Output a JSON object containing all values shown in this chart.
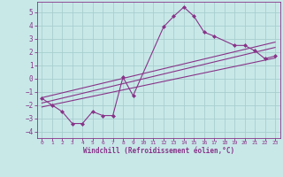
{
  "xlabel": "Windchill (Refroidissement éolien,°C)",
  "background_color": "#c8e8e8",
  "grid_color": "#a8cece",
  "line_color": "#883388",
  "xlim": [
    -0.5,
    23.5
  ],
  "ylim": [
    -4.5,
    5.8
  ],
  "xticks": [
    0,
    1,
    2,
    3,
    4,
    5,
    6,
    7,
    8,
    9,
    10,
    11,
    12,
    13,
    14,
    15,
    16,
    17,
    18,
    19,
    20,
    21,
    22,
    23
  ],
  "yticks": [
    -4,
    -3,
    -2,
    -1,
    0,
    1,
    2,
    3,
    4,
    5
  ],
  "scatter_x": [
    0,
    1,
    2,
    3,
    4,
    5,
    6,
    7,
    8,
    9,
    12,
    13,
    14,
    15,
    16,
    17,
    19,
    20,
    21,
    22,
    23
  ],
  "scatter_y": [
    -1.5,
    -2.0,
    -2.5,
    -3.4,
    -3.4,
    -2.5,
    -2.8,
    -2.8,
    0.1,
    -1.3,
    3.9,
    4.7,
    5.4,
    4.7,
    3.5,
    3.2,
    2.5,
    2.5,
    2.1,
    1.5,
    1.7
  ],
  "line1_x": [
    0,
    23
  ],
  "line1_y": [
    -1.85,
    2.35
  ],
  "line2_x": [
    0,
    23
  ],
  "line2_y": [
    -2.15,
    1.55
  ],
  "line3_x": [
    0,
    23
  ],
  "line3_y": [
    -1.45,
    2.75
  ]
}
